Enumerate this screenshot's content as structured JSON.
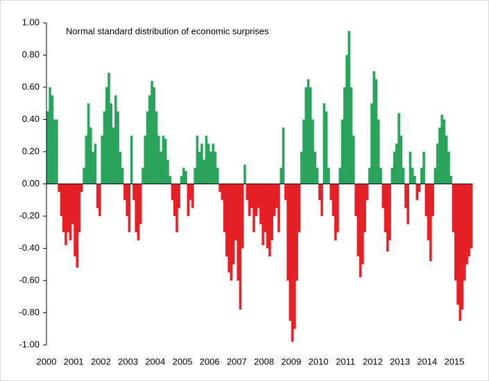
{
  "chart_data": {
    "type": "bar",
    "title": "Normal standard distribution of economic surprises",
    "categories": [
      "2000",
      null,
      null,
      null,
      null,
      null,
      null,
      null,
      null,
      null,
      null,
      null,
      "2001",
      null,
      null,
      null,
      null,
      null,
      null,
      null,
      null,
      null,
      null,
      null,
      "2002",
      null,
      null,
      null,
      null,
      null,
      null,
      null,
      null,
      null,
      null,
      null,
      "2003",
      null,
      null,
      null,
      null,
      null,
      null,
      null,
      null,
      null,
      null,
      null,
      "2004",
      null,
      null,
      null,
      null,
      null,
      null,
      null,
      null,
      null,
      null,
      null,
      "2005",
      null,
      null,
      null,
      null,
      null,
      null,
      null,
      null,
      null,
      null,
      null,
      "2006",
      null,
      null,
      null,
      null,
      null,
      null,
      null,
      null,
      null,
      null,
      null,
      "2007",
      null,
      null,
      null,
      null,
      null,
      null,
      null,
      null,
      null,
      null,
      null,
      "2008",
      null,
      null,
      null,
      null,
      null,
      null,
      null,
      null,
      null,
      null,
      null,
      "2009",
      null,
      null,
      null,
      null,
      null,
      null,
      null,
      null,
      null,
      null,
      null,
      "2010",
      null,
      null,
      null,
      null,
      null,
      null,
      null,
      null,
      null,
      null,
      null,
      "2011",
      null,
      null,
      null,
      null,
      null,
      null,
      null,
      null,
      null,
      null,
      null,
      "2012",
      null,
      null,
      null,
      null,
      null,
      null,
      null,
      null,
      null,
      null,
      null,
      "2013",
      null,
      null,
      null,
      null,
      null,
      null,
      null,
      null,
      null,
      null,
      null,
      "2014",
      null,
      null,
      null,
      null,
      null,
      null,
      null,
      null,
      null,
      null,
      null,
      "2015",
      null,
      null,
      null,
      null,
      null,
      null,
      null
    ],
    "values": [
      0.45,
      0.6,
      0.55,
      0.4,
      0.4,
      -0.05,
      -0.2,
      -0.3,
      -0.38,
      -0.3,
      -0.35,
      -0.25,
      -0.45,
      -0.52,
      -0.3,
      -0.05,
      0.1,
      0.3,
      0.5,
      0.35,
      0.2,
      0.25,
      -0.15,
      -0.2,
      0.3,
      0.45,
      0.6,
      0.69,
      0.5,
      0.35,
      0.55,
      0.45,
      0.2,
      0.1,
      -0.1,
      -0.2,
      -0.3,
      0.3,
      -0.1,
      -0.3,
      -0.35,
      -0.25,
      0.1,
      0.3,
      0.45,
      0.55,
      0.64,
      0.6,
      0.45,
      0.3,
      0.2,
      0.3,
      0.28,
      0.15,
      0.05,
      -0.1,
      -0.2,
      -0.3,
      -0.15,
      0.05,
      0.1,
      0.08,
      -0.2,
      -0.1,
      -0.15,
      0.1,
      0.3,
      0.2,
      0.25,
      0.15,
      0.3,
      0.25,
      0.2,
      0.25,
      0.2,
      0.1,
      -0.05,
      -0.1,
      -0.3,
      -0.45,
      -0.55,
      -0.6,
      -0.5,
      -0.35,
      -0.6,
      -0.78,
      -0.4,
      0.12,
      -0.1,
      -0.2,
      -0.15,
      -0.3,
      -0.2,
      -0.15,
      -0.25,
      -0.38,
      -0.3,
      -0.4,
      -0.45,
      -0.35,
      -0.2,
      -0.15,
      -0.3,
      0.1,
      0.35,
      -0.1,
      -0.6,
      -0.85,
      -0.98,
      -0.9,
      -0.6,
      -0.3,
      0.2,
      0.4,
      0.6,
      0.65,
      0.6,
      0.4,
      0.2,
      0.1,
      -0.1,
      -0.2,
      0.5,
      0.45,
      0.1,
      -0.1,
      -0.2,
      -0.35,
      -0.3,
      0.1,
      0.4,
      0.6,
      0.8,
      0.95,
      0.6,
      0.3,
      -0.2,
      -0.45,
      -0.58,
      -0.5,
      -0.3,
      -0.1,
      0.1,
      0.5,
      0.7,
      0.65,
      0.4,
      0.1,
      -0.15,
      -0.3,
      -0.42,
      -0.35,
      0.1,
      0.2,
      0.25,
      0.44,
      0.3,
      0.1,
      -0.15,
      -0.25,
      0.2,
      0.1,
      0.05,
      -0.1,
      -0.05,
      0.1,
      0.2,
      -0.2,
      -0.35,
      -0.48,
      -0.2,
      0.1,
      0.25,
      0.35,
      0.43,
      0.4,
      0.3,
      0.2,
      0.05,
      -0.3,
      -0.6,
      -0.75,
      -0.85,
      -0.78,
      -0.6,
      -0.5,
      -0.45,
      -0.4
    ],
    "color": "#2aa35c",
    "negative_color": "#e52026",
    "ylim": [
      -1,
      1
    ],
    "yticks": [
      {
        "value": -1,
        "label": "-1.00"
      },
      {
        "value": -0.8,
        "label": "-0.80"
      },
      {
        "value": -0.6,
        "label": "-0.60"
      },
      {
        "value": -0.4,
        "label": "-0.40"
      },
      {
        "value": -0.2,
        "label": "-0.20"
      },
      {
        "value": 0,
        "label": "0.00"
      },
      {
        "value": 0.2,
        "label": "0.20"
      },
      {
        "value": 0.4,
        "label": "0.40"
      },
      {
        "value": 0.6,
        "label": "0.60"
      },
      {
        "value": 0.8,
        "label": "0.80"
      },
      {
        "value": 1,
        "label": "1.00"
      }
    ],
    "grid": false
  }
}
